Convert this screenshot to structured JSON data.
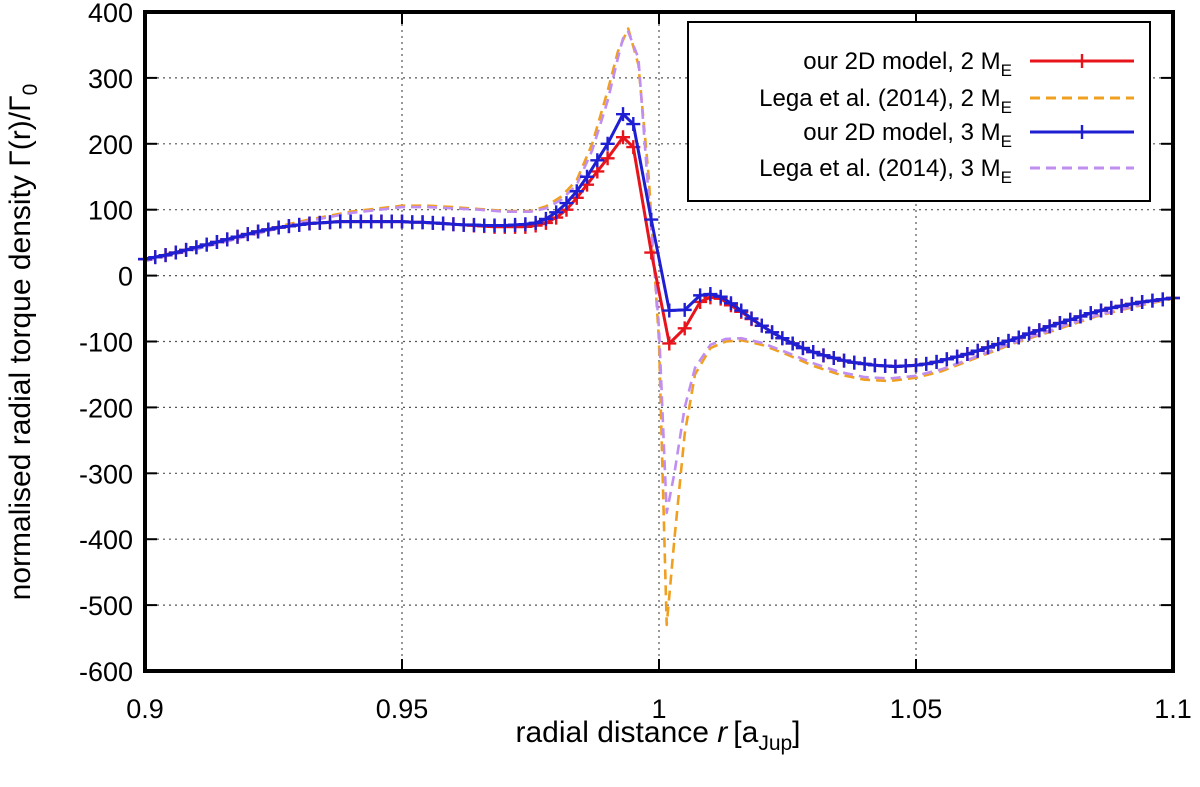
{
  "chart_data": {
    "type": "line",
    "xlabel": {
      "text": "radial distance ",
      "var": "r",
      "unit_open": "[a",
      "unit_sub": "Jup",
      "unit_close": "]"
    },
    "ylabel": {
      "text": "normalised radial torque density ",
      "expr": "Γ(r)/Γ",
      "sub": "0"
    },
    "xlim": [
      0.9,
      1.1
    ],
    "ylim": [
      -600,
      400
    ],
    "xticks": [
      {
        "value": 0.9,
        "label": "0.9"
      },
      {
        "value": 0.95,
        "label": "0.95"
      },
      {
        "value": 1.0,
        "label": "1"
      },
      {
        "value": 1.05,
        "label": "1.05"
      },
      {
        "value": 1.1,
        "label": "1.1"
      }
    ],
    "yticks": [
      {
        "value": 400,
        "label": "400"
      },
      {
        "value": 300,
        "label": "300"
      },
      {
        "value": 200,
        "label": "200"
      },
      {
        "value": 100,
        "label": "100"
      },
      {
        "value": 0,
        "label": "0"
      },
      {
        "value": -100,
        "label": "-100"
      },
      {
        "value": -200,
        "label": "-200"
      },
      {
        "value": -300,
        "label": "-300"
      },
      {
        "value": -400,
        "label": "-400"
      },
      {
        "value": -500,
        "label": "-500"
      },
      {
        "value": -600,
        "label": "-600"
      }
    ],
    "grid": true,
    "legend_position": "top-right",
    "series": [
      {
        "name": "our 2D model, 2 M",
        "name_sub": "E",
        "style": "solid-markers",
        "color": "#e8141c",
        "x": [
          0.9,
          0.902,
          0.904,
          0.906,
          0.908,
          0.91,
          0.912,
          0.914,
          0.916,
          0.918,
          0.92,
          0.922,
          0.924,
          0.926,
          0.928,
          0.93,
          0.932,
          0.934,
          0.936,
          0.938,
          0.94,
          0.942,
          0.944,
          0.946,
          0.948,
          0.95,
          0.952,
          0.954,
          0.956,
          0.958,
          0.96,
          0.962,
          0.964,
          0.966,
          0.968,
          0.97,
          0.972,
          0.974,
          0.976,
          0.978,
          0.98,
          0.982,
          0.984,
          0.986,
          0.988,
          0.99,
          0.993,
          0.995,
          0.9985,
          1.002,
          1.005,
          1.008,
          1.01,
          1.012,
          1.014,
          1.016,
          1.018,
          1.02,
          1.022,
          1.024,
          1.026,
          1.028,
          1.03,
          1.032,
          1.034,
          1.036,
          1.038,
          1.04,
          1.042,
          1.044,
          1.046,
          1.048,
          1.05,
          1.052,
          1.054,
          1.056,
          1.058,
          1.06,
          1.062,
          1.064,
          1.066,
          1.068,
          1.07,
          1.072,
          1.074,
          1.076,
          1.078,
          1.08,
          1.082,
          1.084,
          1.086,
          1.088,
          1.09,
          1.092,
          1.094,
          1.096,
          1.098,
          1.1
        ],
        "y": [
          25,
          28,
          31,
          35,
          39,
          43,
          47,
          51,
          55,
          59,
          63,
          67,
          70,
          73,
          75,
          77,
          79,
          80,
          81,
          82,
          82,
          82,
          82,
          82,
          82,
          82,
          81,
          81,
          80,
          79,
          78,
          77,
          76,
          75,
          74,
          74,
          74,
          74,
          76,
          80,
          88,
          100,
          118,
          138,
          158,
          178,
          210,
          195,
          35,
          -103,
          -80,
          -40,
          -33,
          -35,
          -45,
          -55,
          -66,
          -76,
          -86,
          -95,
          -103,
          -110,
          -116,
          -121,
          -125,
          -129,
          -132,
          -134,
          -136,
          -137,
          -138,
          -137,
          -136,
          -134,
          -131,
          -127,
          -123,
          -119,
          -114,
          -109,
          -104,
          -99,
          -94,
          -88,
          -83,
          -77,
          -72,
          -67,
          -62,
          -57,
          -53,
          -49,
          -46,
          -43,
          -40,
          -38,
          -36,
          -34
        ]
      },
      {
        "name": "Lega et al. (2014), 2 M",
        "name_sub": "E",
        "style": "dashed",
        "color": "#f0a020",
        "x": [
          0.9,
          0.91,
          0.92,
          0.93,
          0.94,
          0.95,
          0.955,
          0.96,
          0.965,
          0.97,
          0.975,
          0.978,
          0.981,
          0.984,
          0.987,
          0.99,
          0.992,
          0.994,
          0.996,
          0.998,
          1.0,
          1.0015,
          1.003,
          1.005,
          1.007,
          1.01,
          1.013,
          1.016,
          1.02,
          1.025,
          1.03,
          1.035,
          1.04,
          1.045,
          1.05,
          1.055,
          1.06,
          1.065,
          1.07,
          1.075,
          1.08,
          1.085,
          1.09,
          1.095,
          1.1
        ],
        "y": [
          25,
          43,
          63,
          82,
          97,
          106,
          106,
          104,
          101,
          98,
          98,
          105,
          120,
          145,
          200,
          280,
          340,
          375,
          320,
          150,
          -100,
          -530,
          -400,
          -240,
          -150,
          -110,
          -100,
          -98,
          -105,
          -120,
          -137,
          -150,
          -158,
          -160,
          -155,
          -145,
          -130,
          -115,
          -100,
          -88,
          -75,
          -62,
          -52,
          -43,
          -35
        ]
      },
      {
        "name": "our 2D model, 3 M",
        "name_sub": "E",
        "style": "solid-markers",
        "color": "#1e1ed2",
        "x": [
          0.9,
          0.902,
          0.904,
          0.906,
          0.908,
          0.91,
          0.912,
          0.914,
          0.916,
          0.918,
          0.92,
          0.922,
          0.924,
          0.926,
          0.928,
          0.93,
          0.932,
          0.934,
          0.936,
          0.938,
          0.94,
          0.942,
          0.944,
          0.946,
          0.948,
          0.95,
          0.952,
          0.954,
          0.956,
          0.958,
          0.96,
          0.962,
          0.964,
          0.966,
          0.968,
          0.97,
          0.972,
          0.974,
          0.976,
          0.978,
          0.98,
          0.982,
          0.984,
          0.986,
          0.988,
          0.99,
          0.993,
          0.995,
          0.9985,
          1.002,
          1.005,
          1.008,
          1.01,
          1.012,
          1.014,
          1.016,
          1.018,
          1.02,
          1.022,
          1.024,
          1.026,
          1.028,
          1.03,
          1.032,
          1.034,
          1.036,
          1.038,
          1.04,
          1.042,
          1.044,
          1.046,
          1.048,
          1.05,
          1.052,
          1.054,
          1.056,
          1.058,
          1.06,
          1.062,
          1.064,
          1.066,
          1.068,
          1.07,
          1.072,
          1.074,
          1.076,
          1.078,
          1.08,
          1.082,
          1.084,
          1.086,
          1.088,
          1.09,
          1.092,
          1.094,
          1.096,
          1.098,
          1.1
        ],
        "y": [
          25,
          28,
          31,
          35,
          39,
          43,
          47,
          51,
          55,
          59,
          63,
          67,
          70,
          73,
          75,
          77,
          79,
          80,
          81,
          82,
          82,
          82,
          82,
          82,
          82,
          82,
          81,
          81,
          80,
          79,
          78,
          77,
          77,
          76,
          76,
          76,
          77,
          78,
          80,
          86,
          96,
          110,
          128,
          150,
          175,
          200,
          245,
          230,
          85,
          -53,
          -52,
          -30,
          -28,
          -32,
          -42,
          -53,
          -65,
          -76,
          -86,
          -95,
          -103,
          -110,
          -116,
          -121,
          -125,
          -129,
          -132,
          -134,
          -136,
          -137,
          -138,
          -137,
          -136,
          -134,
          -131,
          -127,
          -123,
          -119,
          -114,
          -109,
          -104,
          -99,
          -94,
          -88,
          -83,
          -77,
          -72,
          -67,
          -62,
          -57,
          -53,
          -49,
          -46,
          -43,
          -40,
          -38,
          -36,
          -34
        ]
      },
      {
        "name": "Lega et al. (2014), 3 M",
        "name_sub": "E",
        "style": "dashed",
        "color": "#c08ef0",
        "x": [
          0.9,
          0.91,
          0.92,
          0.93,
          0.94,
          0.95,
          0.955,
          0.96,
          0.965,
          0.97,
          0.975,
          0.978,
          0.981,
          0.984,
          0.987,
          0.99,
          0.992,
          0.993,
          0.994,
          0.996,
          0.998,
          1.0,
          1.0015,
          1.003,
          1.005,
          1.007,
          1.01,
          1.013,
          1.016,
          1.02,
          1.025,
          1.03,
          1.035,
          1.04,
          1.045,
          1.05,
          1.055,
          1.06,
          1.065,
          1.07,
          1.075,
          1.08,
          1.085,
          1.09,
          1.095,
          1.1
        ],
        "y": [
          22,
          40,
          60,
          80,
          95,
          104,
          104,
          102,
          100,
          97,
          97,
          102,
          115,
          138,
          190,
          265,
          330,
          360,
          370,
          330,
          120,
          -80,
          -360,
          -300,
          -200,
          -140,
          -105,
          -96,
          -95,
          -102,
          -117,
          -133,
          -146,
          -154,
          -156,
          -152,
          -142,
          -128,
          -113,
          -99,
          -86,
          -73,
          -61,
          -51,
          -42,
          -34
        ]
      }
    ]
  }
}
